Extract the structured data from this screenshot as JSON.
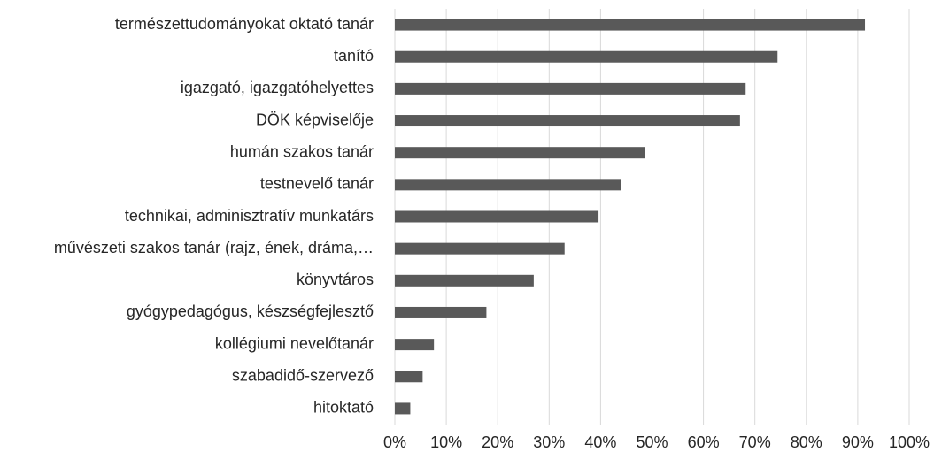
{
  "chart_data": {
    "type": "barh",
    "categories": [
      "természettudományokat oktató tanár",
      "tanító",
      "igazgató, igazgatóhelyettes",
      "DÖK képviselője",
      "humán szakos tanár",
      "testnevelő tanár",
      "technikai, adminisztratív munkatárs",
      "művészeti szakos tanár (rajz, ének, dráma,…",
      "könyvtáros",
      "gyógypedagógus, készségfejlesztő",
      "kollégiumi nevelőtanár",
      "szabadidő-szervező",
      "hitoktató"
    ],
    "values": [
      91.4,
      74.4,
      68.2,
      67.1,
      48.7,
      43.9,
      39.6,
      33,
      27,
      17.8,
      7.6,
      5.4,
      3
    ],
    "color": "#595959",
    "xlim": [
      0,
      100
    ],
    "xticks": [
      {
        "value": 0,
        "label": "0%"
      },
      {
        "value": 10,
        "label": "10%"
      },
      {
        "value": 20,
        "label": "20%"
      },
      {
        "value": 30,
        "label": "30%"
      },
      {
        "value": 40,
        "label": "40%"
      },
      {
        "value": 50,
        "label": "50%"
      },
      {
        "value": 60,
        "label": "60%"
      },
      {
        "value": 70,
        "label": "70%"
      },
      {
        "value": 80,
        "label": "80%"
      },
      {
        "value": 90,
        "label": "90%"
      },
      {
        "value": 100,
        "label": "100%"
      }
    ],
    "grid": true
  }
}
